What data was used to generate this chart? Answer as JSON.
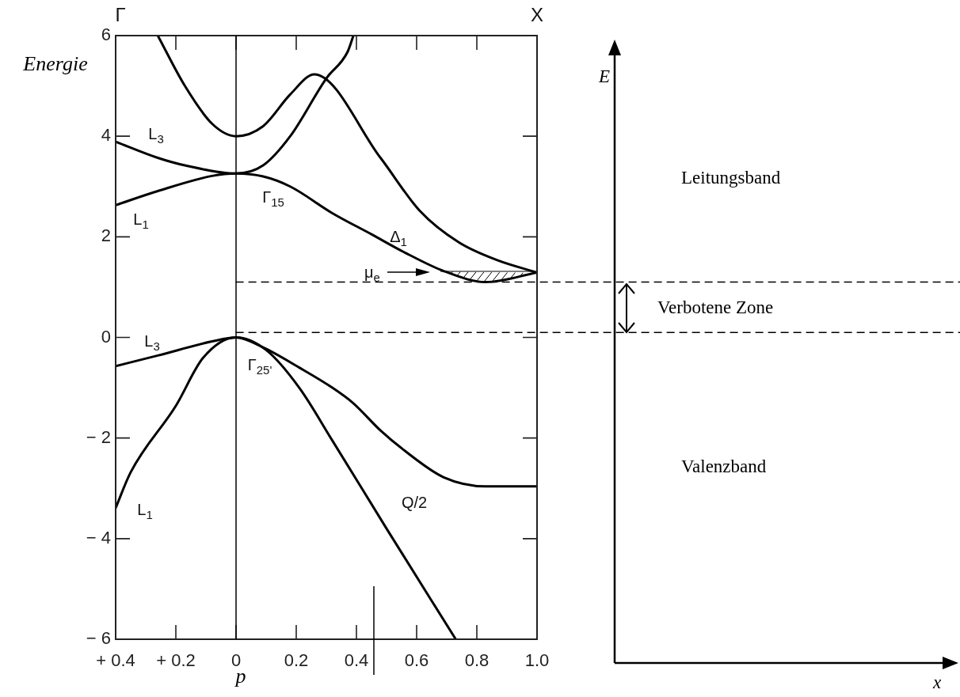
{
  "chart_data": [
    {
      "type": "line",
      "xlabel": "p",
      "ylabel": "Energie",
      "marker": "none",
      "line_style": "solid",
      "xlim": [
        -0.4,
        1.0
      ],
      "ylim": [
        -6,
        6
      ],
      "xticks": [
        {
          "value": -0.4,
          "label": "+ 0.4"
        },
        {
          "value": -0.2,
          "label": "+ 0.2"
        },
        0,
        0.2,
        0.4,
        0.6,
        0.8,
        {
          "value": 1.0,
          "label": "1.0"
        }
      ],
      "yticks": [
        {
          "value": -6,
          "label": "− 6"
        },
        {
          "value": -4,
          "label": "− 4"
        },
        {
          "value": -2,
          "label": "− 2"
        },
        0,
        2,
        4,
        6
      ],
      "series": [
        {
          "color": "#000000",
          "x": [
            -0.26,
            -0.17,
            -0.08,
            0,
            0.09,
            0.18,
            0.26,
            0.48,
            0.61,
            0.74,
            0.87,
            1.0
          ],
          "values": [
            6.0,
            5.0,
            4.25,
            4.0,
            4.2,
            4.83,
            5.23,
            3.57,
            2.52,
            1.89,
            1.53,
            1.29
          ]
        },
        {
          "color": "#000000",
          "x": [
            -0.4,
            -0.26,
            -0.17,
            0,
            0.09,
            0.18,
            0.3,
            0.37,
            0.39
          ],
          "values": [
            3.89,
            3.57,
            3.42,
            3.26,
            3.42,
            4.0,
            5.15,
            5.67,
            6.0
          ]
        },
        {
          "color": "#000000",
          "x": [
            -0.4,
            -0.26,
            -0.08,
            0,
            0.09,
            0.18,
            0.32,
            0.45,
            0.56,
            0.69,
            0.83,
            1.0
          ],
          "values": [
            2.63,
            2.91,
            3.21,
            3.26,
            3.2,
            3.0,
            2.47,
            2.05,
            1.69,
            1.32,
            1.1,
            1.29
          ]
        },
        {
          "color": "#000000",
          "x": [
            -0.4,
            -0.26,
            -0.08,
            0,
            0.09,
            0.21,
            0.32,
            0.39,
            0.48,
            0.56,
            0.69,
            0.83,
            1.0
          ],
          "values": [
            -0.57,
            -0.36,
            -0.08,
            0,
            -0.2,
            -0.6,
            -1.0,
            -1.31,
            -1.85,
            -2.25,
            -2.78,
            -2.96,
            -2.96
          ]
        },
        {
          "color": "#000000",
          "x": [
            -0.4,
            -0.35,
            -0.2,
            -0.11,
            0,
            0.1,
            0.21,
            0.32,
            0.5,
            0.73
          ],
          "values": [
            -3.39,
            -2.68,
            -1.36,
            -0.41,
            0,
            -0.25,
            -1.0,
            -2.05,
            -3.8,
            -6.0
          ]
        }
      ],
      "ref_lines": [
        {
          "axis": "x",
          "value": 0,
          "color": "#000000",
          "line_style": "solid"
        },
        {
          "axis": "y",
          "value": 0.1,
          "color": "#000000",
          "line_style": "dashed"
        },
        {
          "axis": "y",
          "value": 1.1,
          "color": "#000000",
          "line_style": "dashed"
        }
      ],
      "annotations": [
        "Γ",
        "X",
        "L$_{3}$",
        "L$_{1}$",
        "Γ$_{15}$",
        "Δ$_{1}$",
        "μ$_{e}$",
        "L$_{3}$",
        "Γ$_{25'}$",
        "L$_{1}$",
        "Q/2"
      ]
    },
    {
      "type": "other",
      "xlabel": "x",
      "ylabel": "E",
      "annotations": [
        "Leitungsband",
        "Verbotene Zone",
        "Valenzband"
      ]
    }
  ]
}
